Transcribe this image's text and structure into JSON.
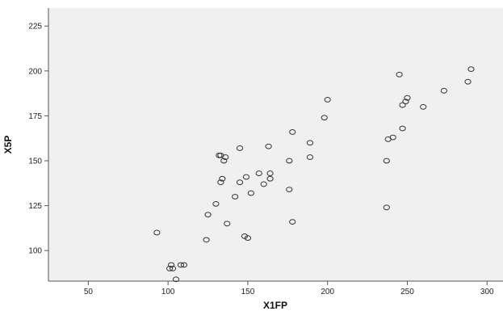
{
  "chart_data": {
    "type": "scatter",
    "title": "",
    "xlabel": "X1FP",
    "ylabel": "X5P",
    "xlim": [
      25,
      310
    ],
    "ylim": [
      83,
      235
    ],
    "xticks": [
      50,
      100,
      150,
      200,
      250,
      300
    ],
    "yticks": [
      100,
      125,
      150,
      175,
      200,
      225
    ],
    "grid": false,
    "legend": "none",
    "colors": {
      "plot_background": "#f0f0f0",
      "marker_stroke": "#333333",
      "axis": "#555555"
    },
    "points": [
      [
        93,
        110
      ],
      [
        101,
        90
      ],
      [
        102,
        92
      ],
      [
        103,
        90
      ],
      [
        105,
        84
      ],
      [
        108,
        92
      ],
      [
        110,
        92
      ],
      [
        124,
        106
      ],
      [
        125,
        120
      ],
      [
        130,
        126
      ],
      [
        132,
        153
      ],
      [
        133,
        153
      ],
      [
        133,
        138
      ],
      [
        134,
        140
      ],
      [
        135,
        150
      ],
      [
        136,
        152
      ],
      [
        137,
        115
      ],
      [
        142,
        130
      ],
      [
        145,
        157
      ],
      [
        145,
        138
      ],
      [
        148,
        108
      ],
      [
        149,
        141
      ],
      [
        150,
        107
      ],
      [
        152,
        132
      ],
      [
        157,
        143
      ],
      [
        160,
        137
      ],
      [
        163,
        158
      ],
      [
        164,
        143
      ],
      [
        164,
        140
      ],
      [
        176,
        150
      ],
      [
        176,
        134
      ],
      [
        178,
        116
      ],
      [
        178,
        166
      ],
      [
        189,
        160
      ],
      [
        189,
        152
      ],
      [
        198,
        174
      ],
      [
        200,
        184
      ],
      [
        237,
        150
      ],
      [
        237,
        124
      ],
      [
        238,
        162
      ],
      [
        241,
        163
      ],
      [
        245,
        198
      ],
      [
        247,
        181
      ],
      [
        247,
        168
      ],
      [
        249,
        183
      ],
      [
        250,
        185
      ],
      [
        260,
        180
      ],
      [
        273,
        189
      ],
      [
        288,
        194
      ],
      [
        290,
        201
      ]
    ]
  }
}
